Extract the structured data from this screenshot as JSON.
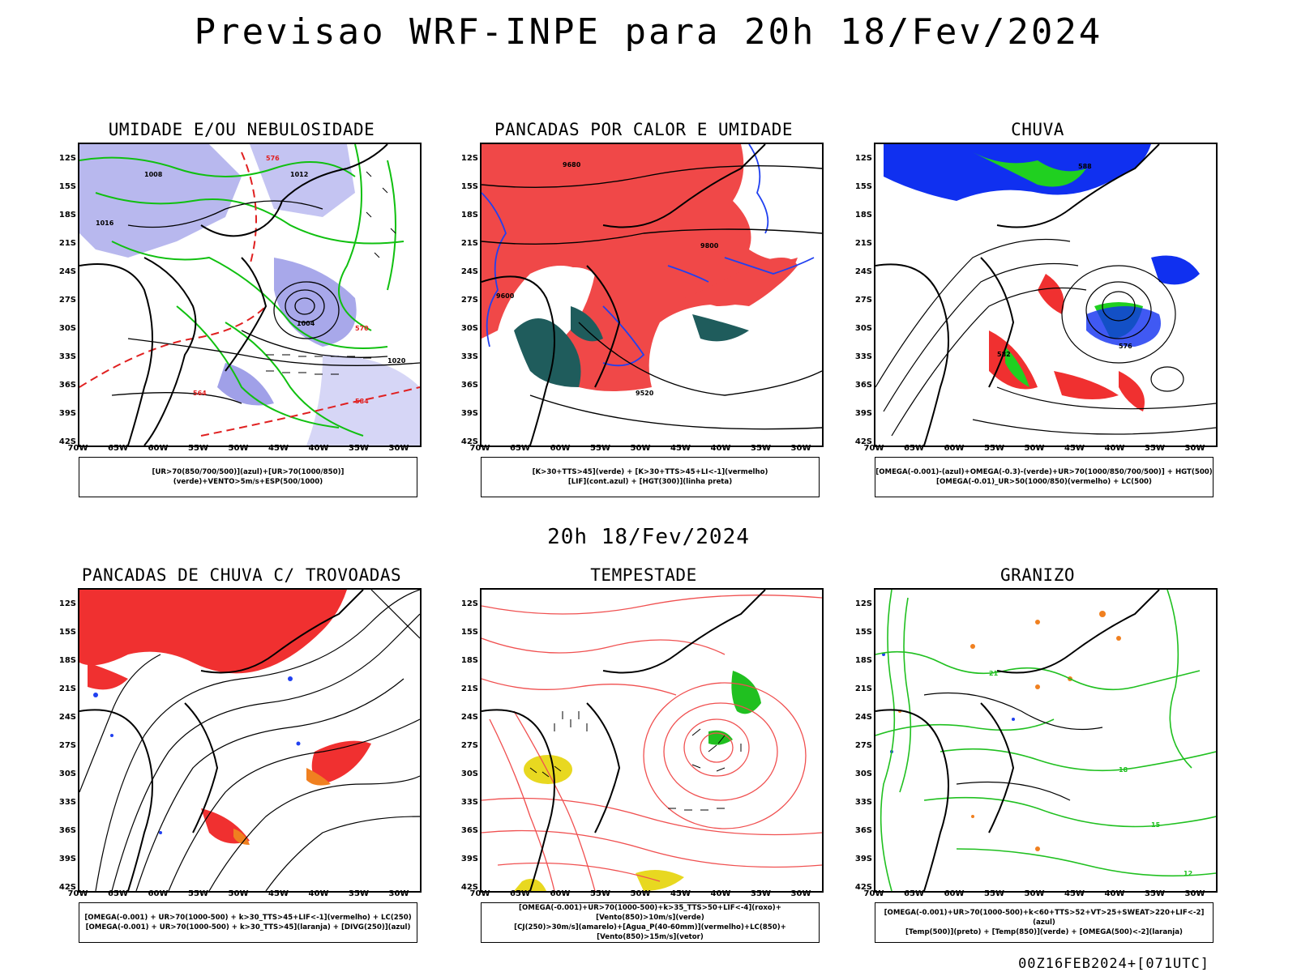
{
  "main_title": "Previsao WRF-INPE  para 20h 18/Fev/2024",
  "mid_title": "20h 18/Fev/2024",
  "footer": "00Z16FEB2024+[071UTC]",
  "axes": {
    "lat_labels": [
      "12S",
      "15S",
      "18S",
      "21S",
      "24S",
      "27S",
      "30S",
      "33S",
      "36S",
      "39S",
      "42S"
    ],
    "lon_labels": [
      "70W",
      "65W",
      "60W",
      "55W",
      "50W",
      "45W",
      "40W",
      "35W",
      "30W"
    ]
  },
  "panels": [
    {
      "title": "UMIDADE E/OU NEBULOSIDADE",
      "legend": [
        "[UR>70(850/700/500)](azul)+[UR>70(1000/850)](verde)+VENTO>5m/s+ESP(500/1000)"
      ],
      "contour_labels": [
        "1008",
        "1012",
        "1016",
        "1004",
        "1020",
        "576",
        "570",
        "564",
        "584"
      ],
      "colors": {
        "blue": "#8c8ce6",
        "green": "#10c010",
        "red": "#e02020"
      }
    },
    {
      "title": "PANCADAS POR CALOR E UMIDADE",
      "legend": [
        "[K>30+TTS>45](verde) + [K>30+TTS>45+LI<-1](vermelho)",
        "[LIF](cont.azul) + [HGT(300)](linha preta)"
      ],
      "contour_labels": [
        "9680",
        "9600",
        "9520",
        "9800"
      ],
      "colors": {
        "red": "#f04040",
        "teal": "#1f5c5c",
        "blue": "#2040f0"
      }
    },
    {
      "title": "CHUVA",
      "legend": [
        "[OMEGA(-0.001)-(azul)+OMEGA(-0.3)-(verde)+UR>70(1000/850/700/500)] + HGT(500)",
        "[OMEGA(-0.01)_UR>50(1000/850)(vermelho) + LC(500)"
      ],
      "contour_labels": [
        "588",
        "576",
        "582"
      ],
      "colors": {
        "blue": "#1030f0",
        "green": "#20d020",
        "red": "#f03030"
      }
    },
    {
      "title": "PANCADAS DE CHUVA C/ TROVOADAS",
      "legend": [
        "[OMEGA(-0.001) + UR>70(1000-500) + k>30_TTS>45+LIF<-1](vermelho) + LC(250)",
        "[OMEGA(-0.001) + UR>70(1000-500) + k>30_TTS>45](laranja) + [DIVG(250)](azul)"
      ],
      "contour_labels": [],
      "colors": {
        "red": "#f03030",
        "orange": "#f08020",
        "blue": "#2040f0"
      }
    },
    {
      "title": "TEMPESTADE",
      "legend": [
        "[OMEGA(-0.001)+UR>70(1000-500)+k>35_TTS>50+LIF<-4](roxo)+[Vento(850)>10m/s](verde)",
        "[CJ(250)>30m/s](amarelo)+[Agua_P(40-60mm)](vermelho)+LC(850)+[Vento(850)>15m/s](vetor)"
      ],
      "contour_labels": [],
      "colors": {
        "red": "#f05050",
        "yellow": "#e8d820",
        "green": "#20c020",
        "purple": "#a020c0"
      }
    },
    {
      "title": "GRANIZO",
      "legend": [
        "[OMEGA(-0.001)+UR>70(1000-500)+k<60+TTS>52+VT>25+SWEAT>220+LIF<-2](azul)",
        "[Temp(500)](preto) + [Temp(850)](verde) + [OMEGA(500)<-2](laranja)"
      ],
      "contour_labels": [
        "21",
        "18",
        "15",
        "12"
      ],
      "colors": {
        "green": "#20c020",
        "orange": "#f08020",
        "blue": "#2040f0"
      }
    }
  ]
}
